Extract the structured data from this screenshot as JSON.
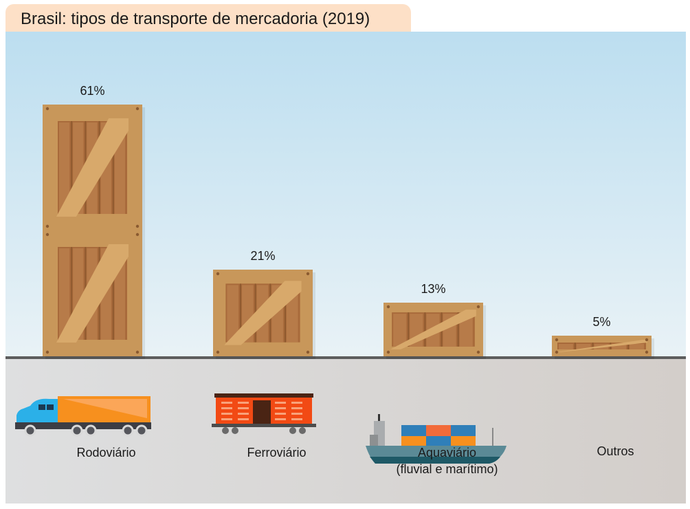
{
  "chart_data": {
    "type": "bar",
    "title": "Brasil: tipos de transporte de mercadoria (2019)",
    "categories": [
      "Rodoviário",
      "Ferroviário",
      "Aquaviário",
      "Outros"
    ],
    "category_sublabels": [
      "",
      "",
      "(fluvial e marítimo)",
      ""
    ],
    "values": [
      61,
      21,
      13,
      5
    ],
    "value_labels": [
      "61%",
      "21%",
      "13%",
      "5%"
    ],
    "unit": "%",
    "ylim": [
      0,
      70
    ],
    "grid": false,
    "bar_style": "wooden crates",
    "icons": [
      "truck-icon",
      "train-wagon-icon",
      "container-ship-icon",
      ""
    ],
    "colors": {
      "crate_frame": "#c8975a",
      "crate_inner": "#a86a3b",
      "sky": "#bcdef0",
      "ground": "#dcdcdc",
      "title_tab": "#fde0c7"
    }
  }
}
